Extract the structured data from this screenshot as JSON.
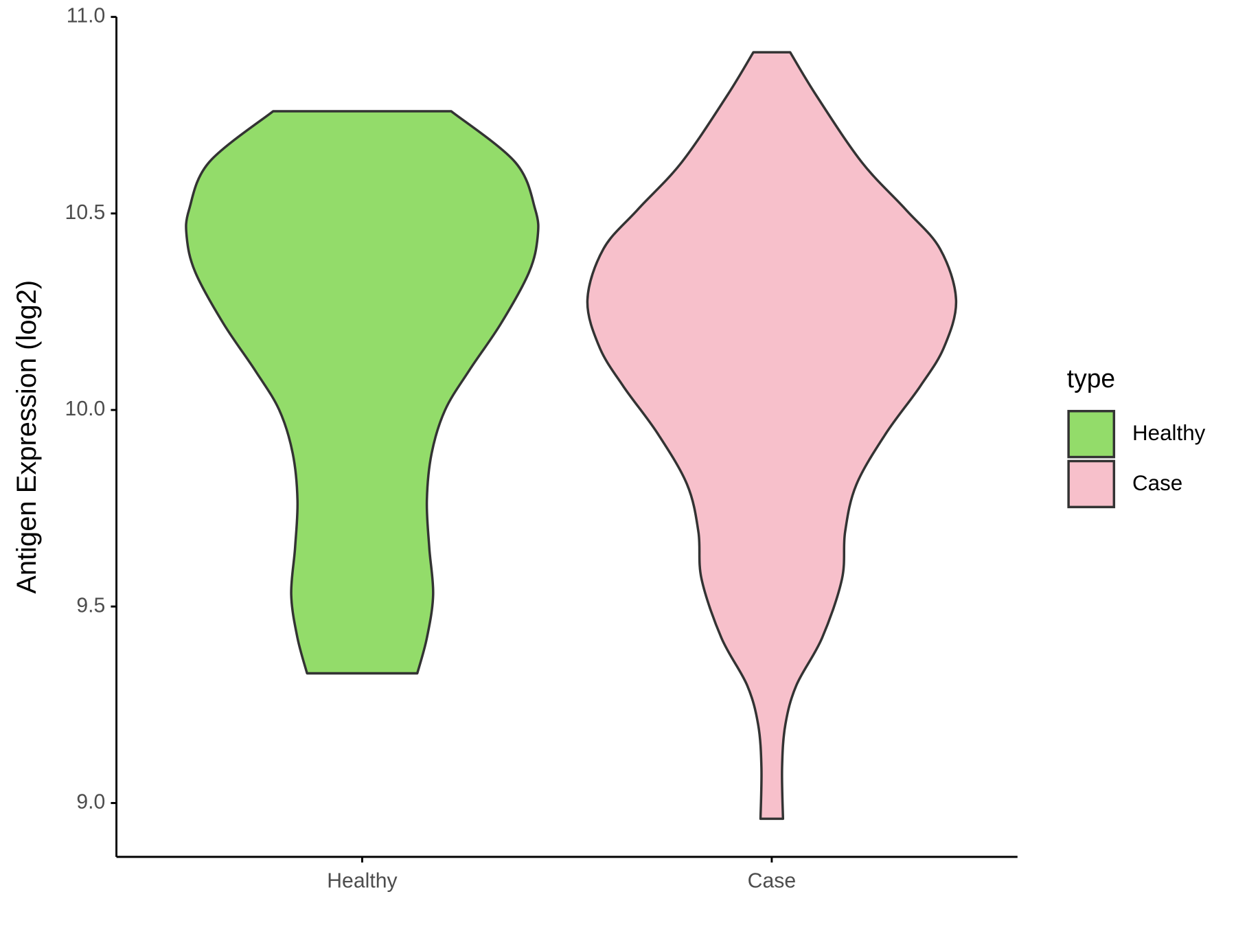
{
  "chart_data": {
    "type": "violin",
    "y_label": "Antigen Expression (log2)",
    "categories": [
      "Healthy",
      "Case"
    ],
    "ylim": [
      8.863,
      11.0
    ],
    "yticks": [
      {
        "value": 9.0,
        "label": "9.0"
      },
      9.5,
      {
        "value": 10.0,
        "label": "10.0"
      },
      10.5,
      {
        "value": 11.0,
        "label": "11.0"
      }
    ],
    "grid": false,
    "legend_title": "type",
    "legend_position": "right",
    "series": [
      {
        "name": "Healthy",
        "color": "#93dc6a",
        "y": [
          10.76,
          10.63,
          10.51,
          10.44,
          10.35,
          10.22,
          10.1,
          10.0,
          9.89,
          9.77,
          9.65,
          9.53,
          9.42,
          9.33
        ],
        "density": [
          0.483,
          0.831,
          0.939,
          0.952,
          0.905,
          0.753,
          0.58,
          0.45,
          0.377,
          0.351,
          0.364,
          0.385,
          0.351,
          0.299
        ]
      },
      {
        "name": "Case",
        "color": "#f7c0cb",
        "y": [
          10.91,
          10.8,
          10.63,
          10.51,
          10.41,
          10.28,
          10.16,
          10.06,
          9.94,
          9.81,
          9.69,
          9.57,
          9.42,
          9.3,
          9.2,
          9.09,
          8.96
        ],
        "density": [
          0.1,
          0.242,
          0.489,
          0.727,
          0.913,
          1.0,
          0.935,
          0.805,
          0.619,
          0.459,
          0.398,
          0.381,
          0.273,
          0.134,
          0.074,
          0.056,
          0.061
        ]
      }
    ]
  }
}
